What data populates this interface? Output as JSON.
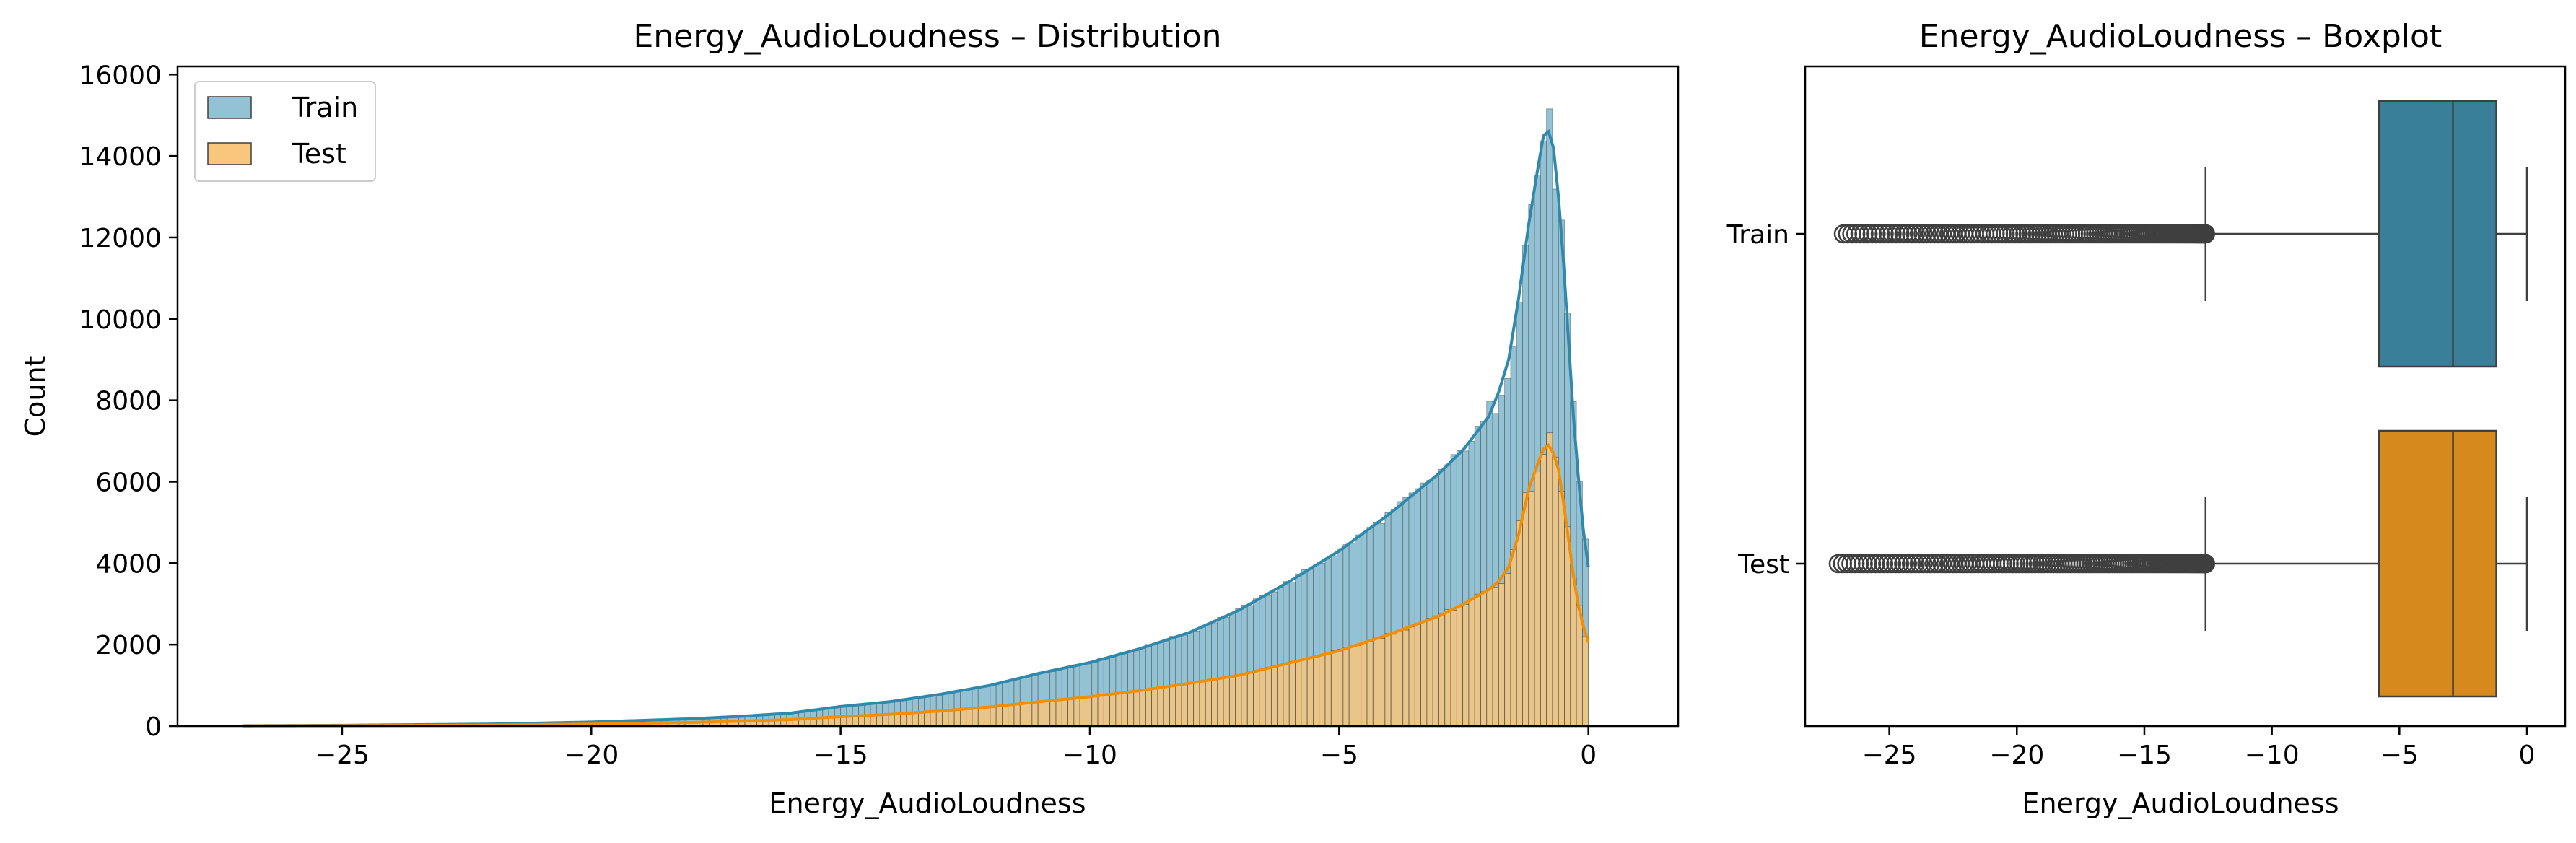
{
  "colors": {
    "train": "#2f89ac",
    "train_fill": "#94c2d5",
    "test": "#f28e04",
    "test_fill": "#f8c67d",
    "box_train": "#3a7f9a",
    "box_test": "#d68a1e",
    "edge": "#3f3f3f"
  },
  "chart_data": [
    {
      "type": "histogram",
      "title": "Energy_AudioLoudness – Distribution",
      "xlabel": "Energy_AudioLoudness",
      "ylabel": "Count",
      "xlim": [
        -28.3,
        1.8
      ],
      "ylim": [
        0,
        16200
      ],
      "xticks": [
        -25,
        -20,
        -15,
        -10,
        -5,
        0
      ],
      "yticks": [
        0,
        2000,
        4000,
        6000,
        8000,
        10000,
        12000,
        14000,
        16000
      ],
      "xtick_labels": [
        "−25",
        "−20",
        "−15",
        "−10",
        "−5",
        "0"
      ],
      "ytick_labels": [
        "0",
        "2000",
        "4000",
        "6000",
        "8000",
        "10000",
        "12000",
        "14000",
        "16000"
      ],
      "legend_position": "top-left",
      "kde": true,
      "series": [
        {
          "name": "Train",
          "points": [
            [
              -27,
              10
            ],
            [
              -25,
              20
            ],
            [
              -22,
              50
            ],
            [
              -20,
              100
            ],
            [
              -18,
              180
            ],
            [
              -17,
              240
            ],
            [
              -16,
              320
            ],
            [
              -15,
              480
            ],
            [
              -14,
              600
            ],
            [
              -13,
              780
            ],
            [
              -12,
              1000
            ],
            [
              -11,
              1300
            ],
            [
              -10,
              1560
            ],
            [
              -9,
              1900
            ],
            [
              -8,
              2300
            ],
            [
              -7,
              2850
            ],
            [
              -6,
              3550
            ],
            [
              -5,
              4300
            ],
            [
              -4,
              5200
            ],
            [
              -3,
              6200
            ],
            [
              -2.5,
              6800
            ],
            [
              -2,
              7600
            ],
            [
              -1.8,
              8200
            ],
            [
              -1.6,
              9000
            ],
            [
              -1.4,
              10500
            ],
            [
              -1.2,
              12300
            ],
            [
              -1.0,
              13800
            ],
            [
              -0.9,
              14500
            ],
            [
              -0.8,
              14600
            ],
            [
              -0.7,
              14200
            ],
            [
              -0.6,
              13000
            ],
            [
              -0.5,
              11400
            ],
            [
              -0.4,
              9500
            ],
            [
              -0.3,
              7600
            ],
            [
              -0.2,
              6100
            ],
            [
              -0.1,
              4800
            ],
            [
              0,
              3900
            ]
          ]
        },
        {
          "name": "Test",
          "points": [
            [
              -27,
              5
            ],
            [
              -25,
              10
            ],
            [
              -22,
              25
            ],
            [
              -20,
              50
            ],
            [
              -18,
              90
            ],
            [
              -17,
              120
            ],
            [
              -16,
              160
            ],
            [
              -15,
              230
            ],
            [
              -14,
              290
            ],
            [
              -13,
              370
            ],
            [
              -12,
              470
            ],
            [
              -11,
              600
            ],
            [
              -10,
              720
            ],
            [
              -9,
              870
            ],
            [
              -8,
              1050
            ],
            [
              -7,
              1250
            ],
            [
              -6,
              1550
            ],
            [
              -5,
              1850
            ],
            [
              -4,
              2250
            ],
            [
              -3,
              2700
            ],
            [
              -2.5,
              3000
            ],
            [
              -2,
              3350
            ],
            [
              -1.8,
              3550
            ],
            [
              -1.6,
              3900
            ],
            [
              -1.4,
              4700
            ],
            [
              -1.2,
              5800
            ],
            [
              -1.0,
              6500
            ],
            [
              -0.9,
              6800
            ],
            [
              -0.8,
              6900
            ],
            [
              -0.7,
              6700
            ],
            [
              -0.6,
              6300
            ],
            [
              -0.5,
              5500
            ],
            [
              -0.4,
              4600
            ],
            [
              -0.3,
              3700
            ],
            [
              -0.2,
              2950
            ],
            [
              -0.1,
              2450
            ],
            [
              0,
              2050
            ]
          ]
        }
      ]
    },
    {
      "type": "boxplot",
      "title": "Energy_AudioLoudness – Boxplot",
      "xlabel": "Energy_AudioLoudness",
      "xlim": [
        -28.3,
        1.5
      ],
      "xticks": [
        -25,
        -20,
        -15,
        -10,
        -5,
        0
      ],
      "xtick_labels": [
        "−25",
        "−20",
        "−15",
        "−10",
        "−5",
        "0"
      ],
      "categories": [
        "Train",
        "Test"
      ],
      "boxes": [
        {
          "name": "Train",
          "whisker_low": -12.6,
          "q1": -5.8,
          "median": -2.9,
          "q3": -1.2,
          "whisker_high": 0.0,
          "outlier_min": -26.8,
          "outlier_max": -12.6
        },
        {
          "name": "Test",
          "whisker_low": -12.6,
          "q1": -5.8,
          "median": -2.9,
          "q3": -1.2,
          "whisker_high": 0.0,
          "outlier_min": -27.0,
          "outlier_max": -12.6
        }
      ]
    }
  ]
}
